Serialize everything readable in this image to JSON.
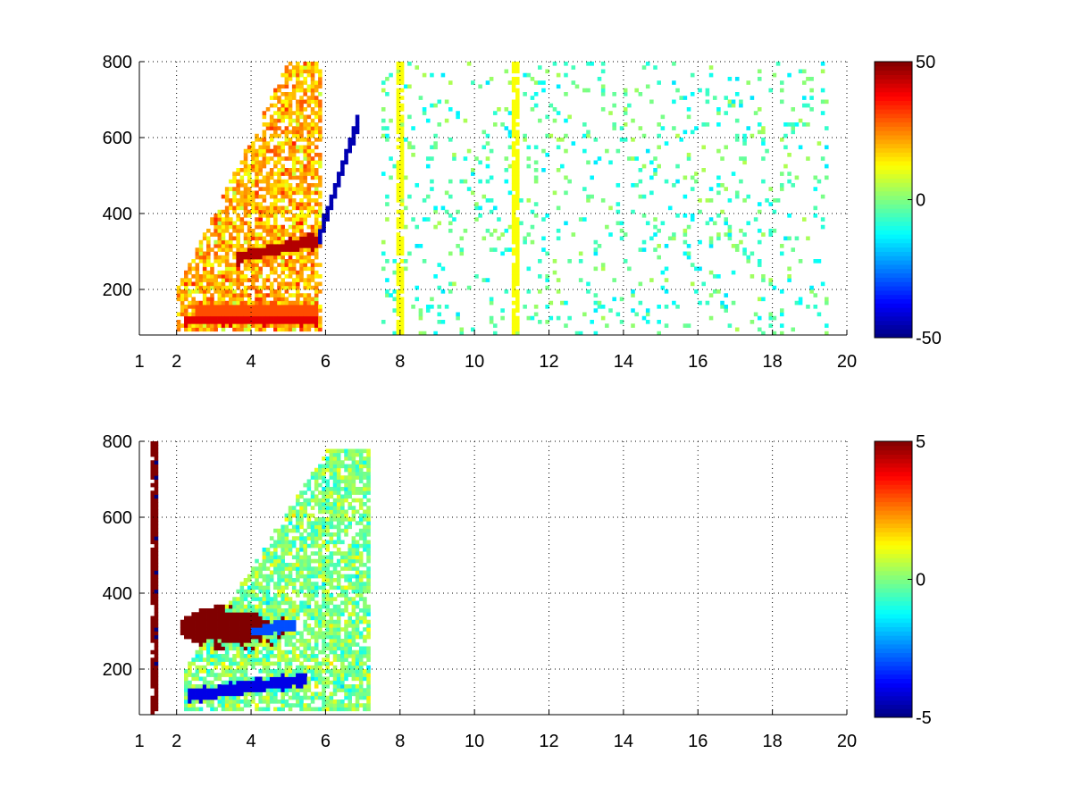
{
  "chart_data": [
    {
      "type": "heatmap",
      "title": "",
      "xlabel": "",
      "ylabel": "",
      "xlim": [
        1,
        20
      ],
      "ylim": [
        80,
        800
      ],
      "xticks": [
        1,
        2,
        4,
        6,
        8,
        10,
        12,
        14,
        16,
        18,
        20
      ],
      "yticks": [
        200,
        400,
        600,
        800
      ],
      "grid": true,
      "colormap": "jet",
      "clim": [
        -50,
        50
      ],
      "colorbar_ticks": [
        50,
        0,
        -50
      ],
      "features": [
        {
          "kind": "band",
          "from": [
            3.6,
            285
          ],
          "to": [
            5.8,
            330
          ],
          "value": 45
        },
        {
          "kind": "band",
          "from": [
            2.2,
            120
          ],
          "to": [
            5.8,
            120
          ],
          "value": 40
        },
        {
          "kind": "band",
          "from": [
            2.5,
            145
          ],
          "to": [
            5.8,
            145
          ],
          "value": 30
        },
        {
          "kind": "band",
          "from": [
            5.8,
            330
          ],
          "to": [
            6.9,
            650
          ],
          "value": -45
        },
        {
          "kind": "region",
          "x": [
            2.0,
            5.9
          ],
          "y": [
            90,
            800
          ],
          "value": 20
        },
        {
          "kind": "line",
          "x": 8.0,
          "value": 12
        },
        {
          "kind": "line",
          "x": 11.1,
          "value": 12
        },
        {
          "kind": "scatter",
          "x": [
            7.5,
            19.5
          ],
          "y": [
            80,
            800
          ],
          "values": [
            -15,
            5
          ]
        }
      ]
    },
    {
      "type": "heatmap",
      "title": "",
      "xlabel": "",
      "ylabel": "",
      "xlim": [
        1,
        20
      ],
      "ylim": [
        80,
        800
      ],
      "xticks": [
        1,
        2,
        4,
        6,
        8,
        10,
        12,
        14,
        16,
        18,
        20
      ],
      "yticks": [
        200,
        400,
        600,
        800
      ],
      "grid": true,
      "colormap": "jet",
      "clim": [
        -5,
        5
      ],
      "colorbar_ticks": [
        5,
        0,
        -5
      ],
      "features": [
        {
          "kind": "spot",
          "x": 3.6,
          "y": 310,
          "value": 5
        },
        {
          "kind": "band",
          "from": [
            2.3,
            130
          ],
          "to": [
            5.5,
            175
          ],
          "value": -4
        },
        {
          "kind": "band",
          "from": [
            4.0,
            300
          ],
          "to": [
            5.2,
            320
          ],
          "value": -3
        },
        {
          "kind": "region",
          "x": [
            2.2,
            7.2
          ],
          "y": [
            90,
            780
          ],
          "value": 0
        },
        {
          "kind": "line",
          "x": 1.4,
          "value": 5
        },
        {
          "kind": "line",
          "x": 1.45,
          "value": -5
        }
      ]
    }
  ]
}
